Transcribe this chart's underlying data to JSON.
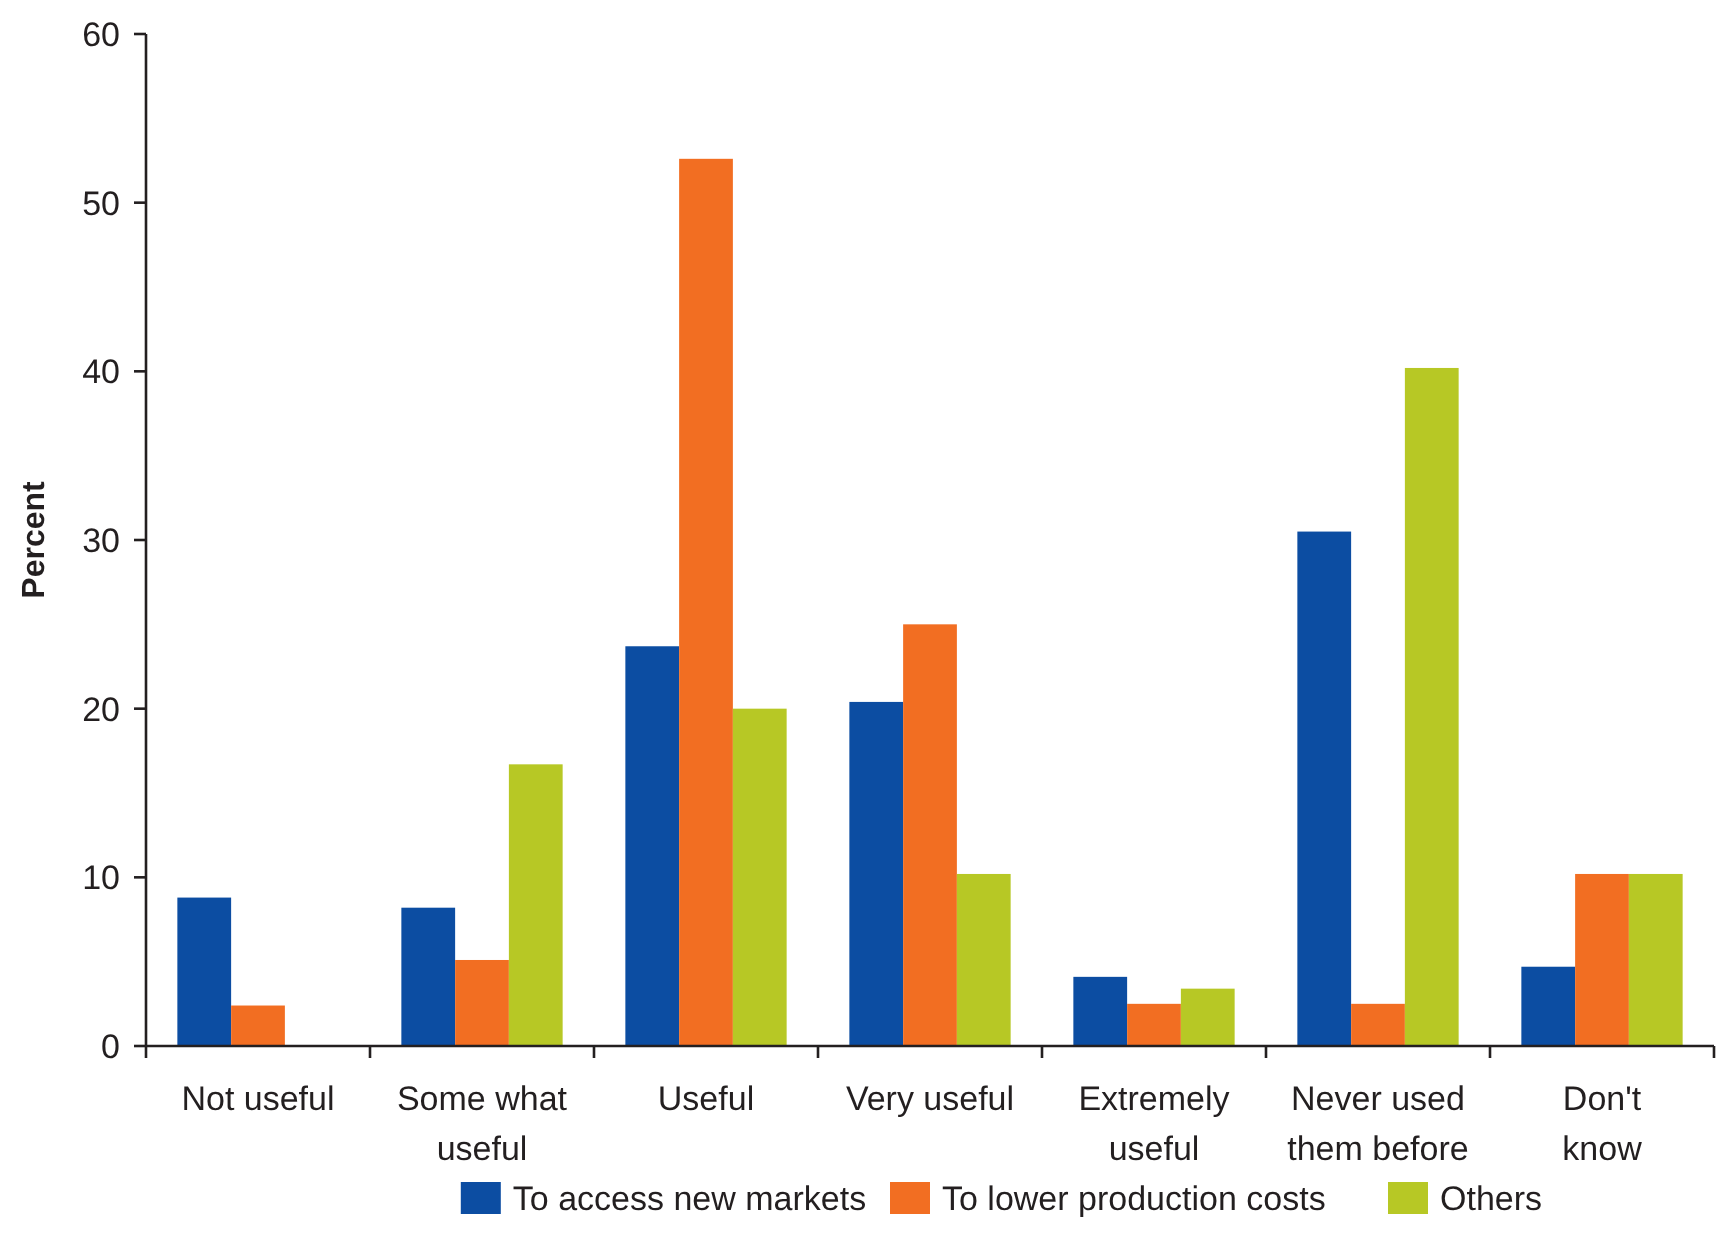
{
  "chart_data": {
    "type": "bar",
    "ylabel": "Percent",
    "categories": [
      "Not useful",
      "Some what\nuseful",
      "Useful",
      "Very useful",
      "Extremely\nuseful",
      "Never used\nthem before",
      "Don't\nknow"
    ],
    "series": [
      {
        "name": "To access new markets",
        "color": "#0c4da2",
        "values": [
          8.8,
          8.2,
          23.7,
          20.4,
          4.1,
          30.5,
          4.7
        ]
      },
      {
        "name": "To lower production costs",
        "color": "#f26e22",
        "values": [
          2.4,
          5.1,
          52.6,
          25.0,
          2.5,
          2.5,
          10.2
        ]
      },
      {
        "name": "Others",
        "color": "#b7c825",
        "values": [
          0,
          16.7,
          20.0,
          10.2,
          3.4,
          40.2,
          10.2
        ]
      }
    ],
    "ylim": [
      0,
      60
    ],
    "yticks": [
      0,
      10,
      20,
      30,
      40,
      50,
      60
    ],
    "legend": "bottom"
  }
}
